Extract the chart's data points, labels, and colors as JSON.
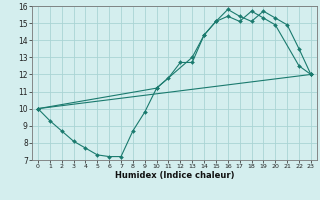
{
  "xlabel": "Humidex (Indice chaleur)",
  "bg_color": "#d4eeee",
  "grid_color": "#aad4d4",
  "line_color": "#1a7a6e",
  "xlim": [
    -0.5,
    23.5
  ],
  "ylim": [
    7,
    16
  ],
  "xtick_labels": [
    "0",
    "1",
    "2",
    "3",
    "4",
    "5",
    "6",
    "7",
    "8",
    "9",
    "10",
    "11",
    "12",
    "13",
    "14",
    "15",
    "16",
    "17",
    "18",
    "19",
    "20",
    "21",
    "22",
    "23"
  ],
  "xtick_vals": [
    0,
    1,
    2,
    3,
    4,
    5,
    6,
    7,
    8,
    9,
    10,
    11,
    12,
    13,
    14,
    15,
    16,
    17,
    18,
    19,
    20,
    21,
    22,
    23
  ],
  "ytick_vals": [
    7,
    8,
    9,
    10,
    11,
    12,
    13,
    14,
    15,
    16
  ],
  "line1_x": [
    0,
    1,
    2,
    3,
    4,
    5,
    6,
    7,
    8,
    9,
    10,
    11,
    12,
    13,
    14,
    15,
    16,
    17,
    18,
    19,
    20,
    21,
    22,
    23
  ],
  "line1_y": [
    10.0,
    9.3,
    8.7,
    8.1,
    7.7,
    7.3,
    7.2,
    7.2,
    8.7,
    9.8,
    11.2,
    11.8,
    12.7,
    12.7,
    14.3,
    15.1,
    15.8,
    15.4,
    15.1,
    15.7,
    15.3,
    14.9,
    13.5,
    12.0
  ],
  "line2_x": [
    0,
    10,
    13,
    14,
    15,
    16,
    17,
    18,
    19,
    20,
    22,
    23
  ],
  "line2_y": [
    10.0,
    11.2,
    13.0,
    14.3,
    15.1,
    15.4,
    15.1,
    15.7,
    15.3,
    14.9,
    12.5,
    12.0
  ],
  "line3_x": [
    0,
    23
  ],
  "line3_y": [
    10.0,
    12.0
  ]
}
